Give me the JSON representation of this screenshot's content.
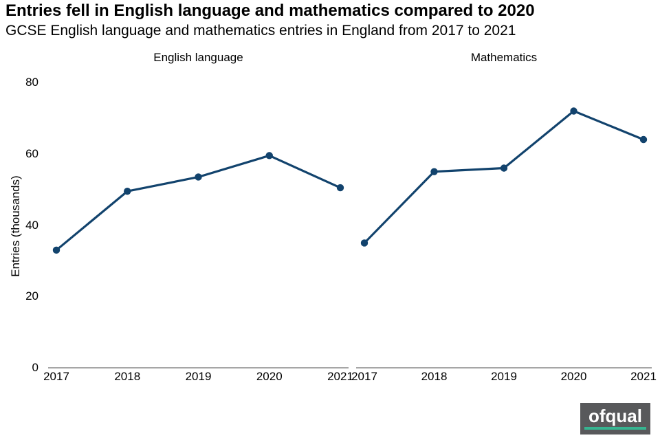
{
  "header": {
    "title": "Entries fell in English language and mathematics compared to 2020",
    "subtitle": "GCSE English language and mathematics entries in England from 2017 to 2021"
  },
  "chart_data": {
    "type": "line",
    "title": "Entries fell in English language and mathematics compared to 2020",
    "subtitle": "GCSE English language and mathematics entries in England from 2017 to 2021",
    "ylabel": "Entries (thousands)",
    "xlabel": "",
    "ylim": [
      0,
      80
    ],
    "yticks": [
      0,
      20,
      40,
      60,
      80
    ],
    "categories": [
      "2017",
      "2018",
      "2019",
      "2020",
      "2021"
    ],
    "grid": false,
    "legend": "none",
    "line_color": "#12436D",
    "axis_color": "#a6a6a6",
    "panels": [
      {
        "title": "English language",
        "values": [
          33,
          49.5,
          53.5,
          59.5,
          50.5
        ]
      },
      {
        "title": "Mathematics",
        "values": [
          35,
          55,
          56,
          72,
          64
        ]
      }
    ]
  },
  "footer": {
    "logo_text": "ofqual",
    "logo_bg": "#58595b",
    "logo_accent": "#36b591"
  }
}
